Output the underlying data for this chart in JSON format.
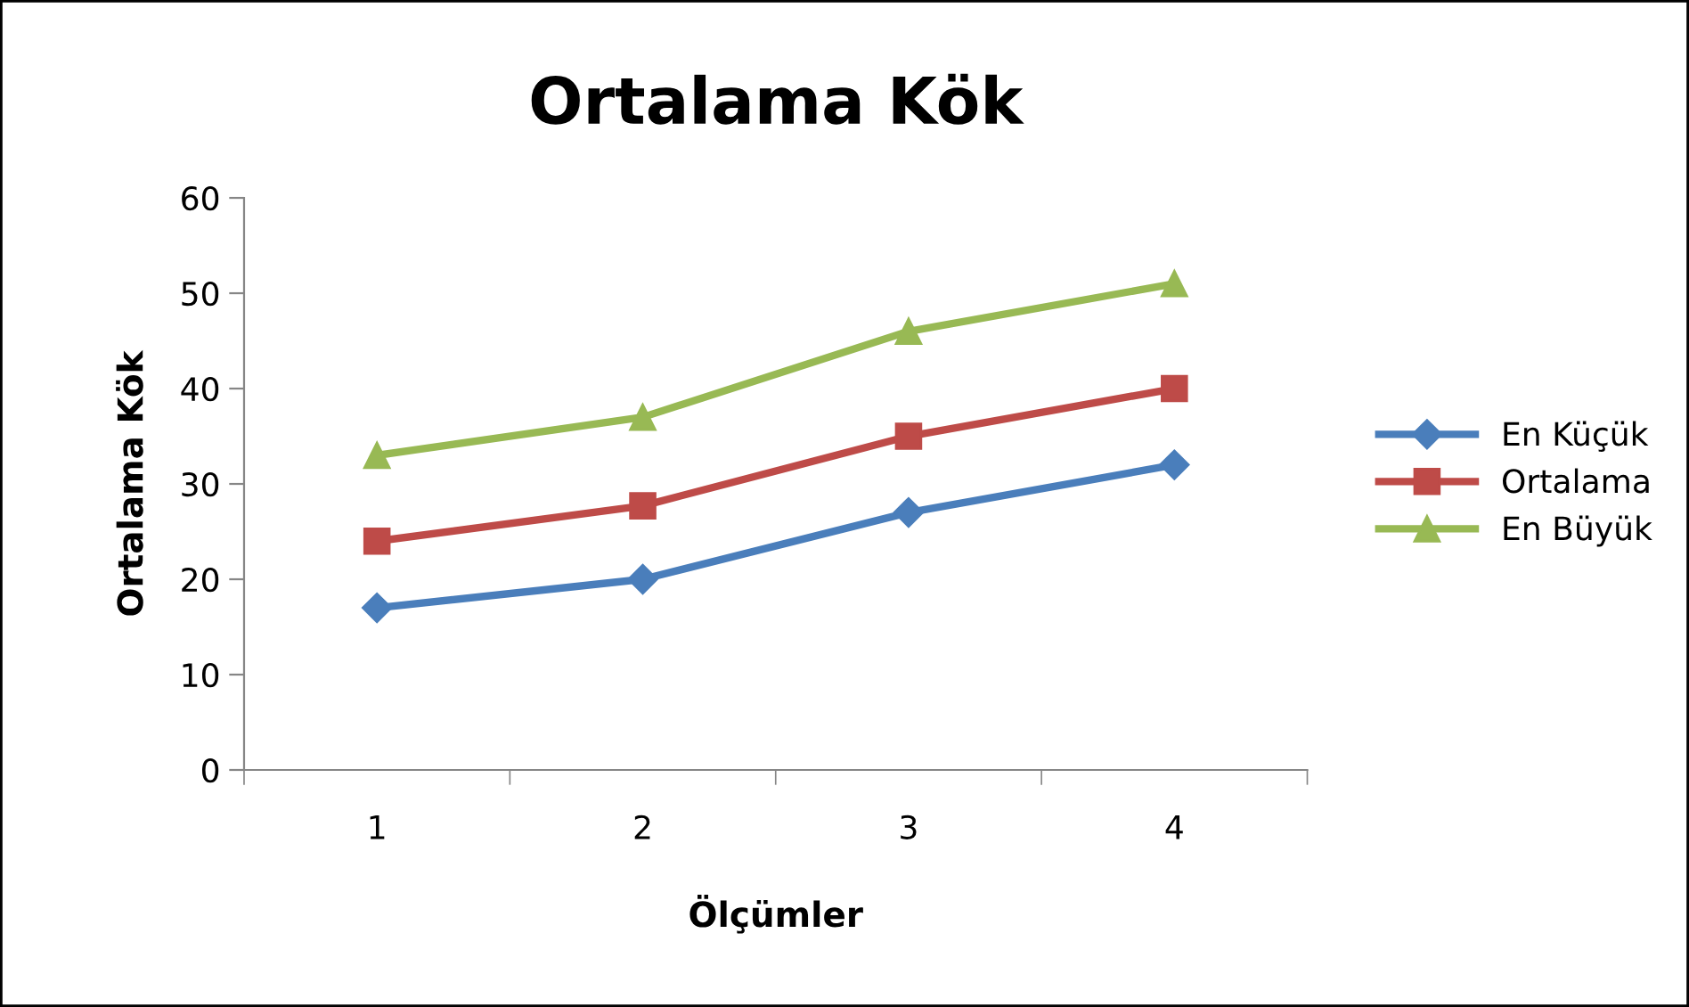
{
  "chart_data": {
    "type": "line",
    "title": "Ortalama Kök",
    "xlabel": "Ölçümler",
    "ylabel": "Ortalama Kök",
    "categories": [
      "1",
      "2",
      "3",
      "4"
    ],
    "series": [
      {
        "name": "En Küçük",
        "color": "#4a7ebb",
        "marker": "diamond",
        "values": [
          17,
          20,
          27,
          32
        ]
      },
      {
        "name": "Ortalama",
        "color": "#be4b48",
        "marker": "square",
        "values": [
          24,
          27.7,
          35,
          40
        ]
      },
      {
        "name": "En Büyük",
        "color": "#98b954",
        "marker": "triangle",
        "values": [
          33,
          37,
          46,
          51
        ]
      }
    ],
    "ylim": [
      0,
      60
    ],
    "yticks": [
      0,
      10,
      20,
      30,
      40,
      50,
      60
    ],
    "grid": false,
    "legend": "right",
    "line_style": "solid"
  }
}
